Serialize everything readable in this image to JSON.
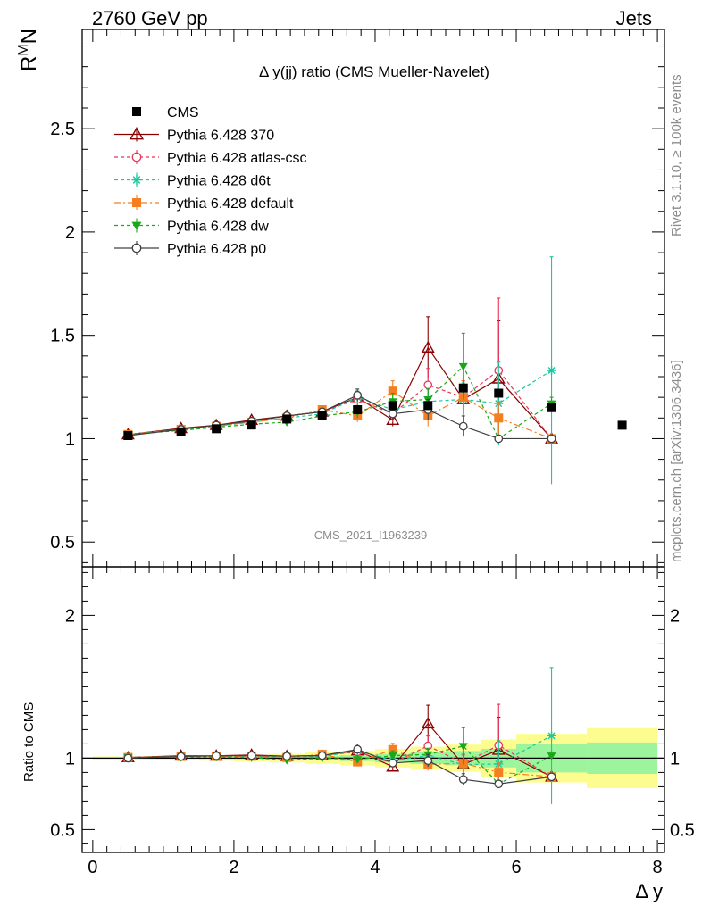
{
  "header": {
    "left": "2760 GeV pp",
    "right": "Jets",
    "side_top": "Rivet 3.1.10, ≥ 100k events",
    "side_bottom": "mcplots.cern.ch [arXiv:1306.3436]",
    "watermark": "CMS_2021_I1963239"
  },
  "chart_data": {
    "type": "scatter",
    "title": "Δ y(jj) ratio (CMS Mueller-Navelet)",
    "ylabel": "R^M_N",
    "ylabel_base": "R",
    "ylabel_sup": "M",
    "ylabel_sub": "N",
    "xlabel": "Δ y",
    "ratio_ylabel": "Ratio to CMS",
    "xlim": [
      -0.15,
      8.1
    ],
    "ylim": [
      0.38,
      2.98
    ],
    "ratio_ylim": [
      0.34,
      2.34
    ],
    "xticks": [
      "0",
      "2",
      "4",
      "6",
      "8"
    ],
    "yticks": [
      "0.5",
      "1",
      "1.5",
      "2",
      "2.5"
    ],
    "ratio_yticks": [
      "0.5",
      "1",
      "2"
    ],
    "ratio_yticks_right": [
      "0.5",
      "1",
      "2"
    ],
    "cms": {
      "name": "CMS",
      "x": [
        0.5,
        1.25,
        1.75,
        2.25,
        2.75,
        3.25,
        3.75,
        4.25,
        4.75,
        5.25,
        5.75,
        6.5,
        7.5
      ],
      "y": [
        1.015,
        1.033,
        1.048,
        1.066,
        1.095,
        1.11,
        1.14,
        1.16,
        1.16,
        1.245,
        1.22,
        1.15,
        1.065
      ],
      "band_x": [
        [
          0,
          1
        ],
        [
          1,
          1.5
        ],
        [
          1.5,
          2
        ],
        [
          2,
          2.5
        ],
        [
          2.5,
          3
        ],
        [
          3,
          3.5
        ],
        [
          3.5,
          4
        ],
        [
          4,
          4.5
        ],
        [
          4.5,
          5
        ],
        [
          5,
          5.5
        ],
        [
          5.5,
          6
        ],
        [
          6,
          7
        ],
        [
          7,
          8
        ]
      ],
      "band_stat": [
        0.005,
        0.005,
        0.006,
        0.007,
        0.01,
        0.014,
        0.02,
        0.03,
        0.04,
        0.05,
        0.065,
        0.1,
        0.11
      ],
      "band_tot": [
        0.012,
        0.014,
        0.018,
        0.022,
        0.03,
        0.04,
        0.05,
        0.065,
        0.08,
        0.095,
        0.13,
        0.17,
        0.21
      ]
    },
    "series": [
      {
        "name": "Pythia 6.428 370",
        "color": "#8b0000",
        "marker": "triangle-open",
        "dash": "solid",
        "x": [
          0.5,
          1.25,
          1.75,
          2.25,
          2.75,
          3.25,
          3.75,
          4.25,
          4.75,
          5.25,
          5.75,
          6.5
        ],
        "y": [
          1.02,
          1.05,
          1.065,
          1.09,
          1.11,
          1.13,
          1.2,
          1.09,
          1.44,
          1.19,
          1.29,
          1.0
        ],
        "err": [
          0.005,
          0.005,
          0.006,
          0.008,
          0.01,
          0.015,
          0.03,
          0.03,
          0.15,
          0.05,
          0.28,
          0.0
        ]
      },
      {
        "name": "Pythia 6.428 atlas-csc",
        "color": "#e8355a",
        "marker": "circle-open",
        "dash": "4,3",
        "x": [
          0.5,
          1.25,
          1.75,
          2.25,
          2.75,
          3.25,
          3.75,
          4.25,
          4.75,
          5.25,
          5.75,
          6.5
        ],
        "y": [
          1.02,
          1.045,
          1.065,
          1.085,
          1.11,
          1.13,
          1.19,
          1.12,
          1.26,
          1.2,
          1.33,
          1.0
        ],
        "err": [
          0.005,
          0.005,
          0.006,
          0.008,
          0.01,
          0.015,
          0.03,
          0.04,
          0.08,
          0.08,
          0.35,
          0.0
        ]
      },
      {
        "name": "Pythia 6.428 d6t",
        "color": "#17c8a0",
        "marker": "star",
        "dash": "4,3",
        "x": [
          0.5,
          1.25,
          1.75,
          2.25,
          2.75,
          3.25,
          3.75,
          4.25,
          4.75,
          5.25,
          5.75,
          6.5
        ],
        "y": [
          1.02,
          1.045,
          1.06,
          1.08,
          1.1,
          1.12,
          1.2,
          1.14,
          1.18,
          1.19,
          1.17,
          1.33
        ],
        "err": [
          0.005,
          0.005,
          0.006,
          0.008,
          0.01,
          0.015,
          0.03,
          0.05,
          0.06,
          0.08,
          0.2,
          0.55
        ]
      },
      {
        "name": "Pythia 6.428 default",
        "color": "#f57f20",
        "marker": "square",
        "dash": "7,3,2,3",
        "x": [
          0.5,
          1.25,
          1.75,
          2.25,
          2.75,
          3.25,
          3.75,
          4.25,
          4.75,
          5.25,
          5.75,
          6.5
        ],
        "y": [
          1.02,
          1.045,
          1.06,
          1.08,
          1.1,
          1.14,
          1.11,
          1.23,
          1.11,
          1.2,
          1.1,
          1.0
        ],
        "err": [
          0.005,
          0.005,
          0.006,
          0.008,
          0.01,
          0.015,
          0.03,
          0.05,
          0.05,
          0.08,
          0.08,
          0.0
        ]
      },
      {
        "name": "Pythia 6.428 dw",
        "color": "#18a818",
        "marker": "triangle-down",
        "dash": "4,3",
        "x": [
          0.5,
          1.25,
          1.75,
          2.25,
          2.75,
          3.25,
          3.75,
          4.25,
          4.75,
          5.25,
          5.75,
          6.5
        ],
        "y": [
          1.02,
          1.04,
          1.055,
          1.07,
          1.08,
          1.11,
          1.13,
          1.18,
          1.19,
          1.35,
          1.0,
          1.17
        ],
        "err": [
          0.005,
          0.005,
          0.006,
          0.008,
          0.01,
          0.015,
          0.03,
          0.04,
          0.05,
          0.16,
          0.0,
          0.03
        ]
      },
      {
        "name": "Pythia 6.428 p0",
        "color": "#404040",
        "marker": "circle-open",
        "dash": "solid",
        "x": [
          0.5,
          1.25,
          1.75,
          2.25,
          2.75,
          3.25,
          3.75,
          4.25,
          4.75,
          5.25,
          5.75,
          6.5
        ],
        "y": [
          1.015,
          1.045,
          1.065,
          1.085,
          1.11,
          1.13,
          1.21,
          1.12,
          1.14,
          1.06,
          1.0,
          1.0
        ],
        "err": [
          0.005,
          0.005,
          0.006,
          0.008,
          0.01,
          0.015,
          0.03,
          0.03,
          0.05,
          0.05,
          0.0,
          0.0
        ]
      }
    ]
  }
}
